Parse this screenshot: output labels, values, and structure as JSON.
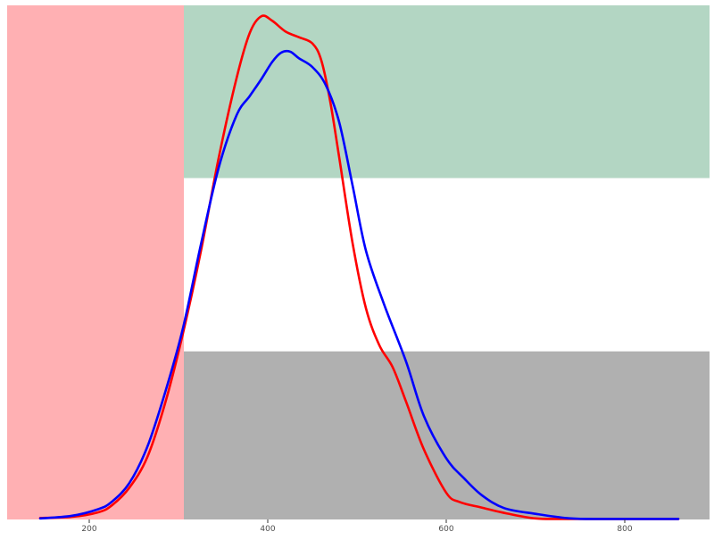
{
  "chart_data": {
    "type": "line",
    "title": "",
    "xlabel": "",
    "ylabel": "",
    "xlim": [
      108,
      895
    ],
    "ylim": [
      0,
      1.0
    ],
    "grid": false,
    "legend": "none",
    "x_ticks": [
      200,
      400,
      600,
      800
    ],
    "x_tick_labels": [
      "200",
      "400",
      "600",
      "800"
    ],
    "background_bands": [
      {
        "name": "left-band",
        "x_range": [
          108,
          306
        ],
        "y_range": [
          0,
          1.0
        ],
        "color": "#FFB0B3"
      },
      {
        "name": "top-band",
        "x_range": [
          306,
          895
        ],
        "y_range": [
          0.664,
          1.0
        ],
        "color": "#B3D6C3"
      },
      {
        "name": "middle-band",
        "x_range": [
          306,
          895
        ],
        "y_range": [
          0.327,
          0.664
        ],
        "color": "#FFFFFF"
      },
      {
        "name": "bottom-band",
        "x_range": [
          306,
          895
        ],
        "y_range": [
          0.0,
          0.327
        ],
        "color": "#B0B0B0"
      }
    ],
    "series": [
      {
        "color": "#FF0000",
        "x": [
          145,
          180,
          210,
          225,
          245,
          265,
          285,
          305,
          325,
          345,
          365,
          380,
          393,
          405,
          420,
          435,
          450,
          460,
          470,
          480,
          495,
          510,
          525,
          540,
          555,
          575,
          600,
          615,
          640,
          670,
          700,
          730,
          770,
          810,
          860
        ],
        "y": [
          0.003,
          0.005,
          0.014,
          0.027,
          0.062,
          0.121,
          0.226,
          0.362,
          0.521,
          0.703,
          0.858,
          0.947,
          0.979,
          0.97,
          0.949,
          0.938,
          0.926,
          0.893,
          0.813,
          0.705,
          0.538,
          0.411,
          0.339,
          0.296,
          0.229,
          0.136,
          0.052,
          0.034,
          0.023,
          0.011,
          0.002,
          0.001,
          0.001,
          0.001,
          0.001
        ]
      },
      {
        "color": "#0000FF",
        "x": [
          145,
          180,
          210,
          225,
          245,
          265,
          285,
          305,
          325,
          345,
          365,
          380,
          393,
          405,
          415,
          425,
          435,
          450,
          465,
          480,
          495,
          510,
          530,
          555,
          575,
          600,
          620,
          640,
          665,
          700,
          740,
          780,
          820,
          860
        ],
        "y": [
          0.002,
          0.007,
          0.02,
          0.034,
          0.071,
          0.141,
          0.247,
          0.372,
          0.534,
          0.684,
          0.786,
          0.824,
          0.857,
          0.89,
          0.908,
          0.91,
          0.897,
          0.88,
          0.845,
          0.773,
          0.65,
          0.523,
          0.42,
          0.307,
          0.201,
          0.119,
          0.08,
          0.047,
          0.022,
          0.011,
          0.002,
          0.001,
          0.001,
          0.001
        ]
      }
    ]
  }
}
